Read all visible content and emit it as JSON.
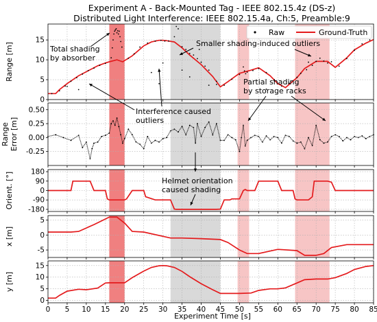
{
  "figure": {
    "title_line1": "Experiment A - Back-Mounted Tag - IEEE 802.15.4z (DS-z)",
    "title_line2": "Distributed Light Interference: IEEE 802.15.4a, Ch:5, Preamble:9"
  },
  "colors": {
    "ground_truth": "#e41a1c",
    "raw": "#000000",
    "shade_absorber": "#f08080",
    "shade_helmet": "#d9d9d9",
    "shade_racks": "#f7c5c5"
  },
  "chart_data": {
    "type": "line",
    "x": {
      "label": "Experiment Time [s]",
      "lim": [
        0,
        85
      ],
      "ticks": [
        0,
        5,
        10,
        15,
        20,
        25,
        30,
        35,
        40,
        45,
        50,
        55,
        60,
        65,
        70,
        75,
        80,
        85
      ]
    },
    "shaded_regions": [
      {
        "x": [
          16,
          20
        ],
        "kind": "absorber"
      },
      {
        "x": [
          32,
          45
        ],
        "kind": "helmet"
      },
      {
        "x": [
          49.5,
          52.5
        ],
        "kind": "racks"
      },
      {
        "x": [
          64.5,
          73.5
        ],
        "kind": "racks"
      }
    ],
    "legend": {
      "position": "top-right",
      "entries": [
        "Raw",
        "Ground-Truth"
      ]
    },
    "annotations": [
      "Total shading\nby absorber",
      "Smaller shading-induced outliers",
      "Partial shading\nby storage racks",
      "Interference caused\noutliers",
      "Helmet orientation\ncaused shading"
    ],
    "panels": [
      {
        "id": "range",
        "ylabel": "Range [m]",
        "ylim": [
          0,
          19
        ],
        "yticks": [
          0,
          5,
          10,
          15
        ],
        "series": [
          {
            "name": "Ground-Truth",
            "style": "line",
            "x": [
              0,
              2,
              3,
              5,
              8,
              10,
              13,
              15,
              16,
              18,
              19.5,
              22,
              25,
              27,
              29,
              30,
              31,
              33,
              35,
              37,
              40,
              43,
              45,
              47,
              49,
              50,
              53,
              55,
              58,
              60,
              62,
              65,
              67,
              70,
              73,
              75,
              78,
              80,
              83,
              85
            ],
            "y": [
              1.5,
              1.5,
              2.5,
              4,
              6,
              7,
              8.5,
              9.2,
              9.5,
              10,
              9.5,
              11,
              13.5,
              14.5,
              14.9,
              14.9,
              14.8,
              14.5,
              13,
              11.2,
              8.8,
              5.8,
              3.2,
              4.5,
              5.9,
              6.6,
              7.4,
              8,
              6,
              4,
              3,
              5.5,
              7.8,
              9.6,
              9.6,
              8.1,
              10.5,
              12.5,
              14.2,
              15.1
            ]
          },
          {
            "name": "Raw",
            "style": "markers",
            "x": [
              1,
              3,
              4.5,
              6,
              7.5,
              9,
              10.5,
              12,
              13.5,
              15,
              16.5,
              16.8,
              17,
              17.2,
              17.4,
              17.6,
              17.8,
              18,
              18.2,
              18.4,
              18.6,
              18.8,
              19,
              19.3,
              21,
              22.5,
              24,
              26,
              28,
              29.5,
              30.5,
              30,
              31.5,
              33,
              33.5,
              34,
              35,
              36,
              37,
              38,
              39,
              39.5,
              40,
              41,
              42,
              44,
              46,
              48,
              50,
              51,
              51.3,
              51.6,
              52,
              53.5,
              55,
              57,
              59,
              61,
              63,
              65,
              66,
              67.5,
              68,
              69,
              70,
              71,
              72,
              73,
              74,
              76,
              78,
              80,
              82,
              84,
              5,
              8,
              27,
              29,
              35,
              37,
              42,
              44,
              57
            ],
            "y": [
              1.5,
              2.2,
              3.4,
              4.6,
              5.5,
              6.4,
              7.3,
              7.9,
              8.6,
              9.1,
              10.5,
              13,
              15,
              16.5,
              17.2,
              17.5,
              17.8,
              16.8,
              17.3,
              16.5,
              17.2,
              15.8,
              14.6,
              13.2,
              10.4,
              11.5,
              13.2,
              14.2,
              14.7,
              14.9,
              14.7,
              9.2,
              14.7,
              15.8,
              18.4,
              17.8,
              13.3,
              12.6,
              11.6,
              11.2,
              10.3,
              12.6,
              9.4,
              8.4,
              7.4,
              4.6,
              3.6,
              5.1,
              6.3,
              8.2,
              7.2,
              6.5,
              6.9,
              7.3,
              7.8,
              6.8,
              4.8,
              3.4,
              4.1,
              5.6,
              6.6,
              7.5,
              9.4,
              8.6,
              9.6,
              10.4,
              9.7,
              9.2,
              9.5,
              8.4,
              10.3,
              12.4,
              14,
              15,
              3.3,
              2.5,
              6.8,
              4,
              7.4,
              5.7,
              3.6,
              3.8,
              2.6
            ]
          }
        ]
      },
      {
        "id": "error",
        "ylabel_line1": "Range",
        "ylabel_line2": "Error [m]",
        "ylim": [
          -0.5,
          0.62
        ],
        "yticks": [
          0.5,
          0.25,
          0,
          -0.25
        ],
        "ytick_labels": [
          "0.50",
          "0.25",
          "0.00",
          "-0.25"
        ],
        "series": [
          {
            "name": "Raw",
            "style": "markers",
            "x": [
              0,
              2,
              4,
              6,
              8,
              9,
              10,
              11,
              11.5,
              12,
              13,
              14,
              15,
              16,
              16.5,
              17,
              17.5,
              18,
              18.5,
              19,
              19.5,
              20,
              21,
              22,
              23,
              24,
              25,
              26,
              27,
              28,
              29,
              30,
              31,
              32,
              33,
              34,
              35,
              36,
              37,
              38,
              38.5,
              39,
              40,
              41,
              42,
              43,
              44,
              45,
              46,
              47,
              48,
              49,
              50,
              50.5,
              51,
              51.5,
              52,
              53,
              54,
              55,
              56,
              57,
              58,
              59,
              60,
              61,
              62,
              63,
              64,
              65,
              66,
              67,
              68,
              69,
              70,
              71,
              72,
              73,
              74,
              75,
              76,
              77,
              78,
              79,
              80,
              81,
              82,
              83,
              84,
              85
            ],
            "y": [
              0.02,
              0.05,
              0.0,
              -0.05,
              0.04,
              -0.18,
              -0.08,
              -0.38,
              -0.2,
              -0.1,
              -0.08,
              0.02,
              0.04,
              0.08,
              0.25,
              0.3,
              0.22,
              0.35,
              0.2,
              0.05,
              -0.1,
              -0.02,
              0.15,
              0.05,
              -0.08,
              -0.12,
              -0.2,
              0.02,
              -0.1,
              -0.05,
              -0.08,
              -0.02,
              0.0,
              0.12,
              0.15,
              0.1,
              0.2,
              0.05,
              0.22,
              0.18,
              -0.1,
              0.25,
              0.02,
              0.18,
              0.28,
              0.05,
              0.25,
              -0.05,
              -0.05,
              0.05,
              0.0,
              -0.04,
              -0.25,
              0.0,
              0.22,
              -0.15,
              -0.05,
              0.0,
              0.04,
              0.02,
              -0.08,
              0.03,
              -0.04,
              0.02,
              0.0,
              -0.1,
              0.04,
              0.02,
              -0.06,
              -0.1,
              -0.08,
              -0.2,
              0.0,
              -0.14,
              0.22,
              -0.04,
              -0.1,
              -0.08,
              0.02,
              0.05,
              0.02,
              -0.06,
              0.0,
              -0.04,
              0.02,
              0.0,
              0.03,
              -0.02,
              0.02,
              0.05
            ]
          }
        ]
      },
      {
        "id": "orient",
        "ylabel": "Orient. [°]",
        "ylim": [
          -200,
          200
        ],
        "yticks": [
          180,
          90,
          0,
          -90,
          -180
        ],
        "series": [
          {
            "name": "Ground-Truth",
            "style": "line",
            "x": [
              0,
              5,
              6,
              6.5,
              11,
              12,
              15,
              15.5,
              16,
              20,
              20.5,
              22,
              23,
              25,
              25.5,
              28,
              29,
              32,
              33,
              33.5,
              44,
              45,
              46,
              47.5,
              48,
              50,
              51,
              51.5,
              52,
              54,
              55,
              56,
              60,
              61,
              63,
              64,
              64.5,
              65,
              68,
              69,
              69.5,
              73,
              74,
              75,
              76,
              80,
              81,
              85
            ],
            "y": [
              0,
              0,
              0,
              90,
              90,
              0,
              0,
              -80,
              -90,
              -90,
              -80,
              0,
              0,
              0,
              -60,
              -90,
              -90,
              -90,
              -178,
              -180,
              -180,
              -178,
              -90,
              -90,
              -80,
              -80,
              0,
              10,
              0,
              0,
              90,
              90,
              90,
              0,
              0,
              0,
              -80,
              -90,
              -90,
              -60,
              90,
              90,
              80,
              0,
              0,
              0,
              0,
              0
            ]
          }
        ]
      },
      {
        "id": "x",
        "ylabel": "x [m]",
        "ylim": [
          -7.5,
          6.5
        ],
        "yticks": [
          5,
          0,
          -5
        ],
        "series": [
          {
            "name": "Ground-Truth",
            "style": "line",
            "x": [
              0,
              6,
              8,
              12,
              16,
              18,
              20,
              22,
              25,
              32,
              35,
              40,
              45,
              47,
              50,
              52,
              55,
              60,
              65,
              67,
              70,
              72,
              74,
              78,
              80,
              85
            ],
            "y": [
              1,
              1,
              1.2,
              3.5,
              6,
              6,
              4,
              1.2,
              1,
              -1,
              -1,
              -1.2,
              -1.5,
              -2.5,
              -5,
              -6.2,
              -6.2,
              -4.8,
              -5.2,
              -6.8,
              -6.8,
              -6.2,
              -4.2,
              -3.2,
              -3.2,
              -3.2
            ]
          }
        ]
      },
      {
        "id": "y",
        "ylabel": "y [m]",
        "ylim": [
          -1,
          17
        ],
        "yticks": [
          0,
          5,
          10,
          15
        ],
        "series": [
          {
            "name": "Ground-Truth",
            "style": "line",
            "x": [
              0,
              2,
              3,
              5,
              8,
              10,
              13,
              15,
              16,
              20,
              22,
              25,
              27,
              29,
              30,
              31,
              33,
              35,
              37,
              40,
              43,
              45,
              47,
              49,
              50,
              53,
              55,
              58,
              60,
              62,
              65,
              67,
              70,
              73,
              75,
              78,
              80,
              83,
              85
            ],
            "y": [
              1,
              1,
              2.2,
              4,
              4.8,
              4.6,
              5.3,
              7.5,
              7.6,
              7.6,
              9.8,
              12.6,
              14.2,
              14.9,
              15,
              14.9,
              14.2,
              12.5,
              10.2,
              7.2,
              4.6,
              3,
              3,
              3,
              3,
              3.2,
              4.3,
              5,
              5,
              5.4,
              7.5,
              8.9,
              9.2,
              9.2,
              9.8,
              11.6,
              13.3,
              14.6,
              15
            ]
          }
        ]
      }
    ]
  }
}
